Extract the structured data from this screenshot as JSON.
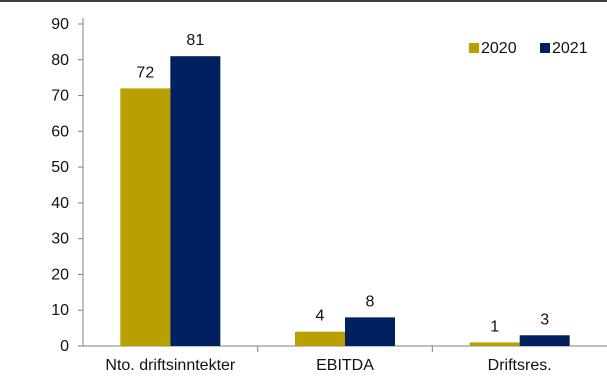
{
  "chart_data": {
    "type": "bar",
    "categories": [
      "Nto. driftsinntekter",
      "EBITDA",
      "Driftsres."
    ],
    "series": [
      {
        "name": "2020",
        "values": [
          72,
          4,
          1
        ],
        "color": "#b8a000"
      },
      {
        "name": "2021",
        "values": [
          81,
          8,
          3
        ],
        "color": "#002060"
      }
    ],
    "data_labels": [
      [
        "72",
        "4",
        "1"
      ],
      [
        "81",
        "8",
        "3"
      ]
    ],
    "y_ticks": [
      0,
      10,
      20,
      30,
      40,
      50,
      60,
      70,
      80,
      90
    ],
    "ylim": [
      0,
      90
    ],
    "legend_position": "top-right",
    "grid": false
  }
}
